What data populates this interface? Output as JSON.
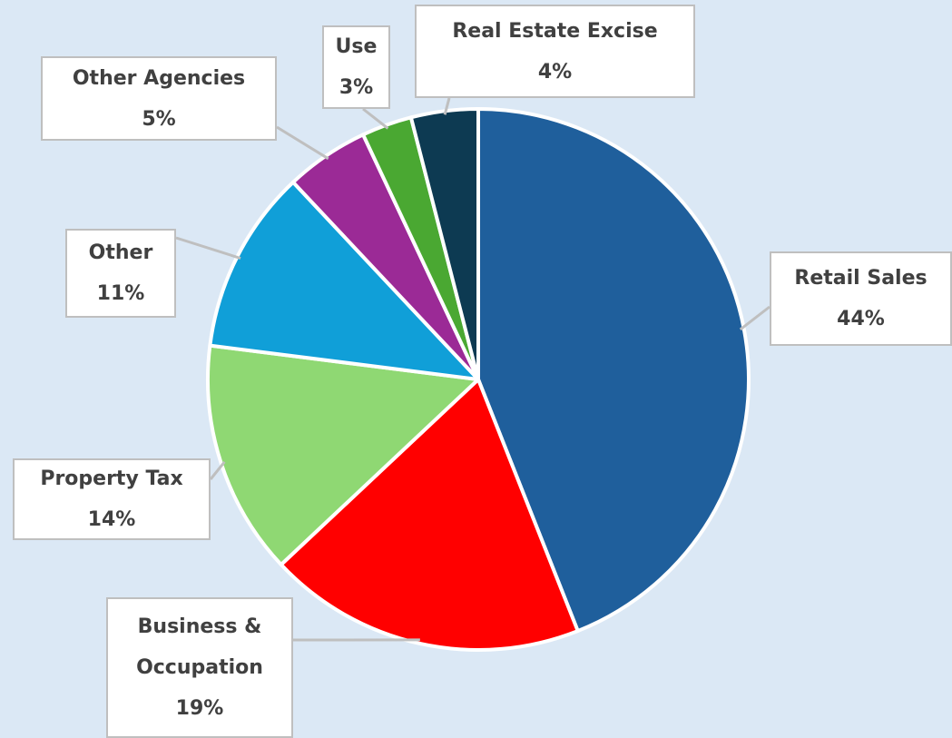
{
  "chart_data": {
    "type": "pie",
    "categories": [
      "Retail Sales",
      "Business & Occupation",
      "Property Tax",
      "Other",
      "Other Agencies",
      "Use",
      "Real Estate Excise"
    ],
    "values": [
      44,
      19,
      14,
      11,
      5,
      3,
      4
    ],
    "value_labels": [
      "44%",
      "19%",
      "14%",
      "11%",
      "5%",
      "3%",
      "4%"
    ],
    "colors": [
      "#1f5f9c",
      "#ff0000",
      "#8fd873",
      "#109fd8",
      "#9b2a96",
      "#4aa832",
      "#0d3a52"
    ]
  }
}
